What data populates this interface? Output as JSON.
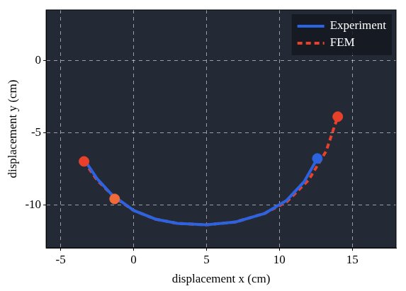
{
  "chart_data": {
    "type": "line",
    "x_label": "displacement x (cm)",
    "y_label": "displacement y (cm)",
    "xlim": [
      -6,
      18
    ],
    "xticks": [
      -5,
      0,
      5,
      10,
      15
    ],
    "ylim": [
      -13,
      3.5
    ],
    "yticks": [
      -10,
      -5,
      0
    ],
    "grid": true,
    "legend": "upper right",
    "series": [
      {
        "name": "Experiment",
        "color": "#2b63e0",
        "line_style": "solid",
        "x": [
          -3.3,
          -2.5,
          -1.5,
          0,
          1.5,
          3,
          5,
          7,
          9,
          10.5,
          11.7,
          12.6
        ],
        "values": [
          -7.0,
          -8.2,
          -9.3,
          -10.4,
          -11.0,
          -11.3,
          -11.4,
          -11.2,
          -10.6,
          -9.7,
          -8.4,
          -6.8
        ]
      },
      {
        "name": "FEM",
        "color": "#e8402a",
        "line_style": "dashed",
        "x": [
          -3.4,
          -2.5,
          -1.3,
          0,
          1.5,
          3,
          5,
          7,
          9,
          10.5,
          12,
          13.2,
          14
        ],
        "values": [
          -7.0,
          -8.3,
          -9.5,
          -10.4,
          -11.0,
          -11.3,
          -11.4,
          -11.2,
          -10.6,
          -9.8,
          -8.3,
          -6.3,
          -3.9
        ]
      }
    ],
    "highlight_points": [
      {
        "x": -3.4,
        "y": -7.0,
        "color": "#e8402a"
      },
      {
        "x": -1.3,
        "y": -9.6,
        "color": "#f06b3a"
      },
      {
        "x": 12.6,
        "y": -6.8,
        "color": "#2b63e0"
      },
      {
        "x": 14.0,
        "y": -3.9,
        "color": "#e8402a"
      }
    ]
  }
}
